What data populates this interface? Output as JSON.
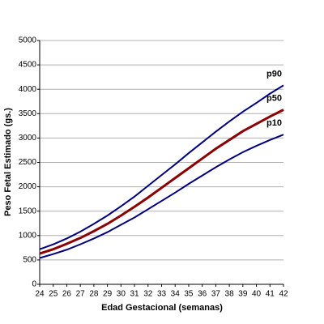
{
  "chart_data": {
    "type": "line",
    "x_label": "Edad Gestacional (semanas)",
    "y_label": "Peso Fetal Estimado (gs.)",
    "x": [
      24,
      25,
      26,
      27,
      28,
      29,
      30,
      31,
      32,
      33,
      34,
      35,
      36,
      37,
      38,
      39,
      40,
      41,
      42
    ],
    "xlim": [
      24,
      42
    ],
    "xticks": [
      24,
      25,
      26,
      27,
      28,
      29,
      30,
      31,
      32,
      33,
      34,
      35,
      36,
      37,
      38,
      39,
      40,
      41,
      42
    ],
    "ylim": [
      0,
      5000
    ],
    "yticks": [
      0,
      500,
      1000,
      1500,
      2000,
      2500,
      3000,
      3500,
      4000,
      4500,
      5000
    ],
    "grid": true,
    "series": [
      {
        "name": "p90",
        "color": "#000080",
        "values": [
          720,
          820,
          940,
          1080,
          1240,
          1410,
          1600,
          1800,
          2020,
          2240,
          2460,
          2690,
          2910,
          3130,
          3340,
          3540,
          3720,
          3910,
          4080
        ]
      },
      {
        "name": "p50",
        "color": "#8b0000",
        "values": [
          630,
          720,
          830,
          950,
          1090,
          1240,
          1410,
          1590,
          1780,
          1980,
          2180,
          2380,
          2580,
          2780,
          2960,
          3140,
          3290,
          3440,
          3580
        ]
      },
      {
        "name": "p10",
        "color": "#000080",
        "values": [
          540,
          620,
          710,
          820,
          940,
          1070,
          1220,
          1370,
          1540,
          1710,
          1880,
          2060,
          2230,
          2400,
          2560,
          2710,
          2840,
          2960,
          3070
        ]
      }
    ]
  }
}
